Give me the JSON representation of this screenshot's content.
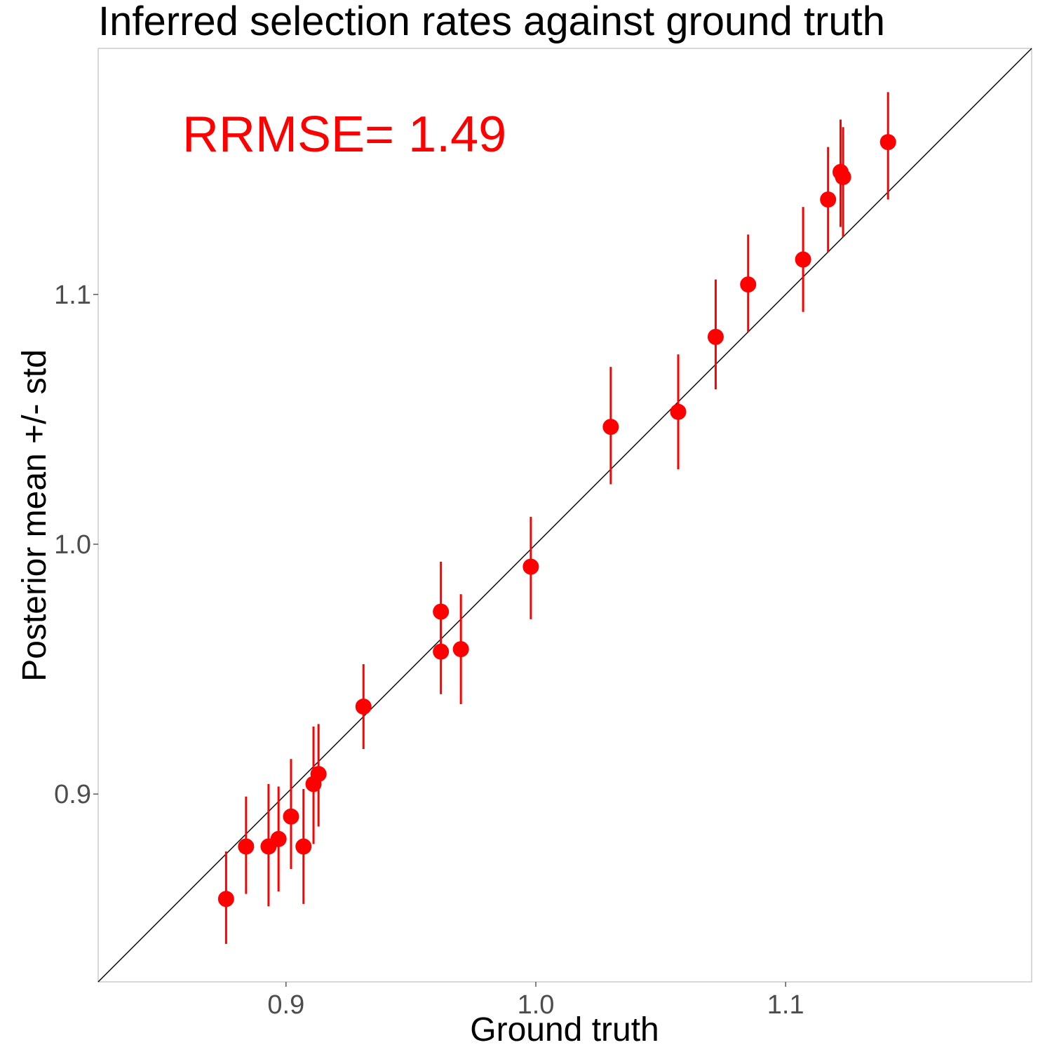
{
  "chart_data": {
    "type": "scatter",
    "title": "Inferred selection rates against ground truth",
    "xlabel": "Ground truth",
    "ylabel": "Posterior mean +/- std",
    "xlim": [
      0.8248,
      1.1985
    ],
    "ylim": [
      0.8248,
      1.1985
    ],
    "x_ticks": [
      0.9,
      1.0,
      1.1
    ],
    "x_tick_labels": [
      "0.9",
      "1.0",
      "1.1"
    ],
    "y_ticks": [
      0.9,
      1.0,
      1.1
    ],
    "y_tick_labels": [
      "0.9",
      "1.0",
      "1.1"
    ],
    "grid": false,
    "legend": "none",
    "reference_line": "y = x",
    "annotation": "RRMSE= 1.49",
    "colors": {
      "points": "#ff0000",
      "annotation": "#ff0000",
      "reference_line": "#000000",
      "panel_border": "#bdbdbd"
    },
    "series": [
      {
        "points": [
          {
            "x": 0.876,
            "y": 0.858,
            "lower": 0.84,
            "upper": 0.877
          },
          {
            "x": 0.884,
            "y": 0.879,
            "lower": 0.86,
            "upper": 0.899
          },
          {
            "x": 0.893,
            "y": 0.879,
            "lower": 0.855,
            "upper": 0.904
          },
          {
            "x": 0.897,
            "y": 0.882,
            "lower": 0.861,
            "upper": 0.903
          },
          {
            "x": 0.902,
            "y": 0.891,
            "lower": 0.87,
            "upper": 0.914
          },
          {
            "x": 0.907,
            "y": 0.879,
            "lower": 0.856,
            "upper": 0.902
          },
          {
            "x": 0.911,
            "y": 0.904,
            "lower": 0.88,
            "upper": 0.927
          },
          {
            "x": 0.913,
            "y": 0.908,
            "lower": 0.887,
            "upper": 0.928
          },
          {
            "x": 0.931,
            "y": 0.935,
            "lower": 0.918,
            "upper": 0.952
          },
          {
            "x": 0.962,
            "y": 0.957,
            "lower": 0.94,
            "upper": 0.975
          },
          {
            "x": 0.962,
            "y": 0.973,
            "lower": 0.957,
            "upper": 0.993
          },
          {
            "x": 0.97,
            "y": 0.958,
            "lower": 0.936,
            "upper": 0.98
          },
          {
            "x": 0.998,
            "y": 0.991,
            "lower": 0.97,
            "upper": 1.011
          },
          {
            "x": 1.03,
            "y": 1.047,
            "lower": 1.024,
            "upper": 1.071
          },
          {
            "x": 1.057,
            "y": 1.053,
            "lower": 1.03,
            "upper": 1.076
          },
          {
            "x": 1.072,
            "y": 1.083,
            "lower": 1.062,
            "upper": 1.106
          },
          {
            "x": 1.085,
            "y": 1.104,
            "lower": 1.085,
            "upper": 1.124
          },
          {
            "x": 1.107,
            "y": 1.114,
            "lower": 1.093,
            "upper": 1.135
          },
          {
            "x": 1.117,
            "y": 1.138,
            "lower": 1.117,
            "upper": 1.159
          },
          {
            "x": 1.122,
            "y": 1.149,
            "lower": 1.127,
            "upper": 1.17
          },
          {
            "x": 1.123,
            "y": 1.147,
            "lower": 1.123,
            "upper": 1.167
          },
          {
            "x": 1.141,
            "y": 1.161,
            "lower": 1.138,
            "upper": 1.181
          }
        ]
      }
    ]
  }
}
